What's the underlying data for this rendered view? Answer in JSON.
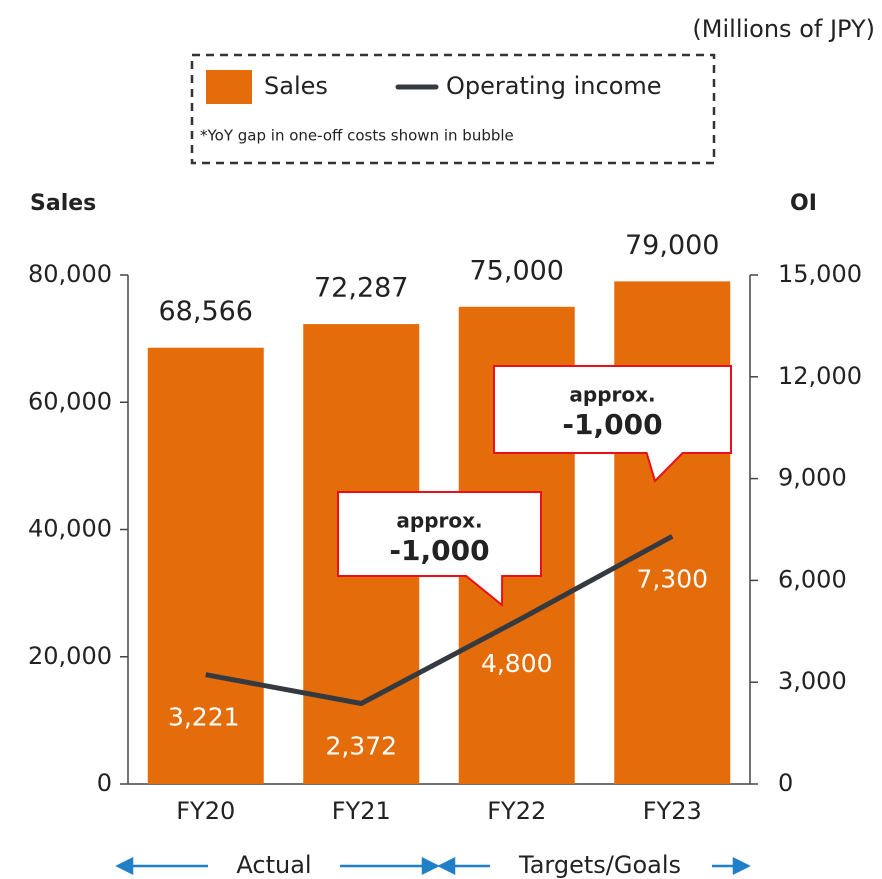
{
  "chart_data": {
    "type": "bar-line",
    "unit_note": "(Millions of JPY)",
    "legend_note": "*YoY gap in one-off costs shown in bubble",
    "y_axis_label": "Sales",
    "y2_axis_label": "OI",
    "categories": [
      "FY20",
      "FY21",
      "FY22",
      "FY23"
    ],
    "series": [
      {
        "name": "Sales",
        "type": "bar",
        "color": "#e46c0a",
        "values": [
          68566,
          72287,
          75000,
          79000
        ],
        "value_labels": [
          "68,566",
          "72,287",
          "75,000",
          "79,000"
        ]
      },
      {
        "name": "Operating income",
        "type": "line",
        "axis": "y2",
        "color": "#343a3f",
        "values": [
          3221,
          2372,
          4800,
          7300
        ],
        "value_labels": [
          "3,221",
          "2,372",
          "4,800",
          "7,300"
        ]
      }
    ],
    "ylim": [
      0,
      80000
    ],
    "yticks": [
      0,
      {
        "value": 20000,
        "label": "20,000"
      },
      {
        "value": 40000,
        "label": "40,000"
      },
      {
        "value": 60000,
        "label": "60,000"
      },
      {
        "value": 80000,
        "label": "80,000"
      }
    ],
    "y2lim": [
      0,
      15000
    ],
    "y2ticks": [
      0,
      {
        "value": 3000,
        "label": "3,000"
      },
      {
        "value": 6000,
        "label": "6,000"
      },
      {
        "value": 9000,
        "label": "9,000"
      },
      {
        "value": 12000,
        "label": "12,000"
      },
      {
        "value": 15000,
        "label": "15,000"
      }
    ],
    "annotations": [
      {
        "line1": "approx.",
        "line2": "-1,000"
      },
      {
        "line1": "approx.",
        "line2": "-1,000"
      }
    ],
    "periods": [
      "Actual",
      "Targets/Goals"
    ]
  }
}
